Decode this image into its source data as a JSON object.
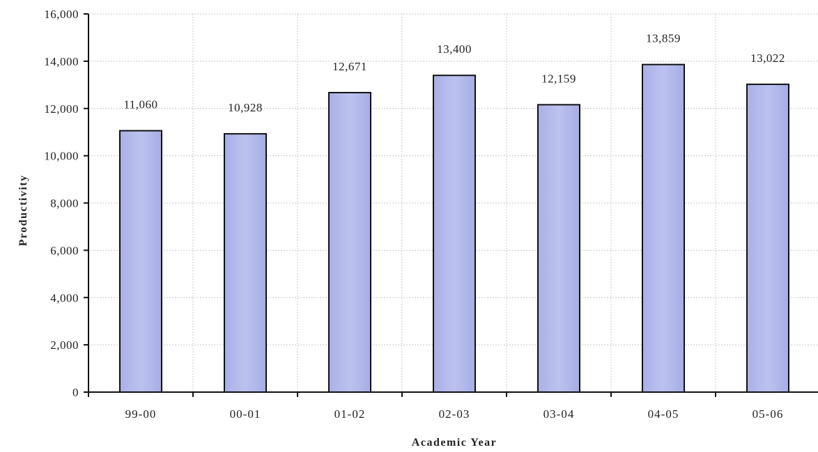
{
  "chart_data": {
    "type": "bar",
    "categories": [
      "99-00",
      "00-01",
      "01-02",
      "02-03",
      "03-04",
      "04-05",
      "05-06"
    ],
    "values": [
      11060,
      10928,
      12671,
      13400,
      12159,
      13859,
      13022
    ],
    "data_labels": [
      "11,060",
      "10,928",
      "12,671",
      "13,400",
      "12,159",
      "13,859",
      "13,022"
    ],
    "xlabel": "Academic Year",
    "ylabel": "Productivity",
    "ylim": [
      0,
      16000
    ],
    "yticks": [
      0,
      2000,
      4000,
      6000,
      8000,
      10000,
      12000,
      14000,
      16000
    ],
    "ytick_labels": [
      "0",
      "2,000",
      "4,000",
      "6,000",
      "8,000",
      "10,000",
      "12,000",
      "14,000",
      "16,000"
    ],
    "grid": true,
    "legend": "none",
    "bar_color": "#b3b9ea",
    "bar_edge_color": "#111111"
  }
}
